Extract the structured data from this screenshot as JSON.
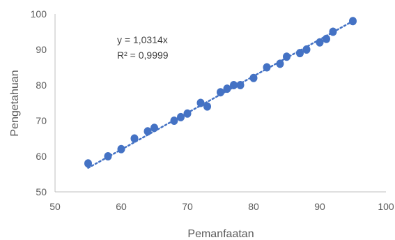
{
  "chart_data": {
    "type": "scatter",
    "title": "",
    "xlabel": "Pemanfaatan",
    "ylabel": "Pengetahuan",
    "xlim": [
      50,
      100
    ],
    "ylim": [
      50,
      100
    ],
    "x_ticks": [
      50,
      60,
      70,
      80,
      90,
      100
    ],
    "y_ticks": [
      50,
      60,
      70,
      80,
      90,
      100
    ],
    "x_tick_labels": [
      "50",
      "60",
      "70",
      "80",
      "90",
      "100"
    ],
    "y_tick_labels": [
      "50",
      "60",
      "70",
      "80",
      "90",
      "100"
    ],
    "grid": false,
    "legend": "none",
    "marker_color": "#4472C4",
    "series": [
      {
        "points": [
          {
            "x": 55,
            "y": 58
          },
          {
            "x": 58,
            "y": 60
          },
          {
            "x": 60,
            "y": 62
          },
          {
            "x": 62,
            "y": 65
          },
          {
            "x": 64,
            "y": 67
          },
          {
            "x": 65,
            "y": 68
          },
          {
            "x": 68,
            "y": 70
          },
          {
            "x": 69,
            "y": 71
          },
          {
            "x": 70,
            "y": 72
          },
          {
            "x": 72,
            "y": 75
          },
          {
            "x": 73,
            "y": 74
          },
          {
            "x": 75,
            "y": 78
          },
          {
            "x": 76,
            "y": 79
          },
          {
            "x": 77,
            "y": 80
          },
          {
            "x": 78,
            "y": 80
          },
          {
            "x": 80,
            "y": 82
          },
          {
            "x": 82,
            "y": 85
          },
          {
            "x": 84,
            "y": 86
          },
          {
            "x": 85,
            "y": 88
          },
          {
            "x": 87,
            "y": 89
          },
          {
            "x": 88,
            "y": 90
          },
          {
            "x": 90,
            "y": 92
          },
          {
            "x": 91,
            "y": 93
          },
          {
            "x": 92,
            "y": 95
          },
          {
            "x": 95,
            "y": 98
          }
        ]
      }
    ],
    "trendline": {
      "type": "linear-through-origin",
      "slope": 1.0314,
      "style": "dotted",
      "color": "#4472C4",
      "x_range": [
        55,
        95
      ],
      "equation_label": "y = 1,0314x",
      "r2_label": "R² = 0,9999"
    }
  }
}
